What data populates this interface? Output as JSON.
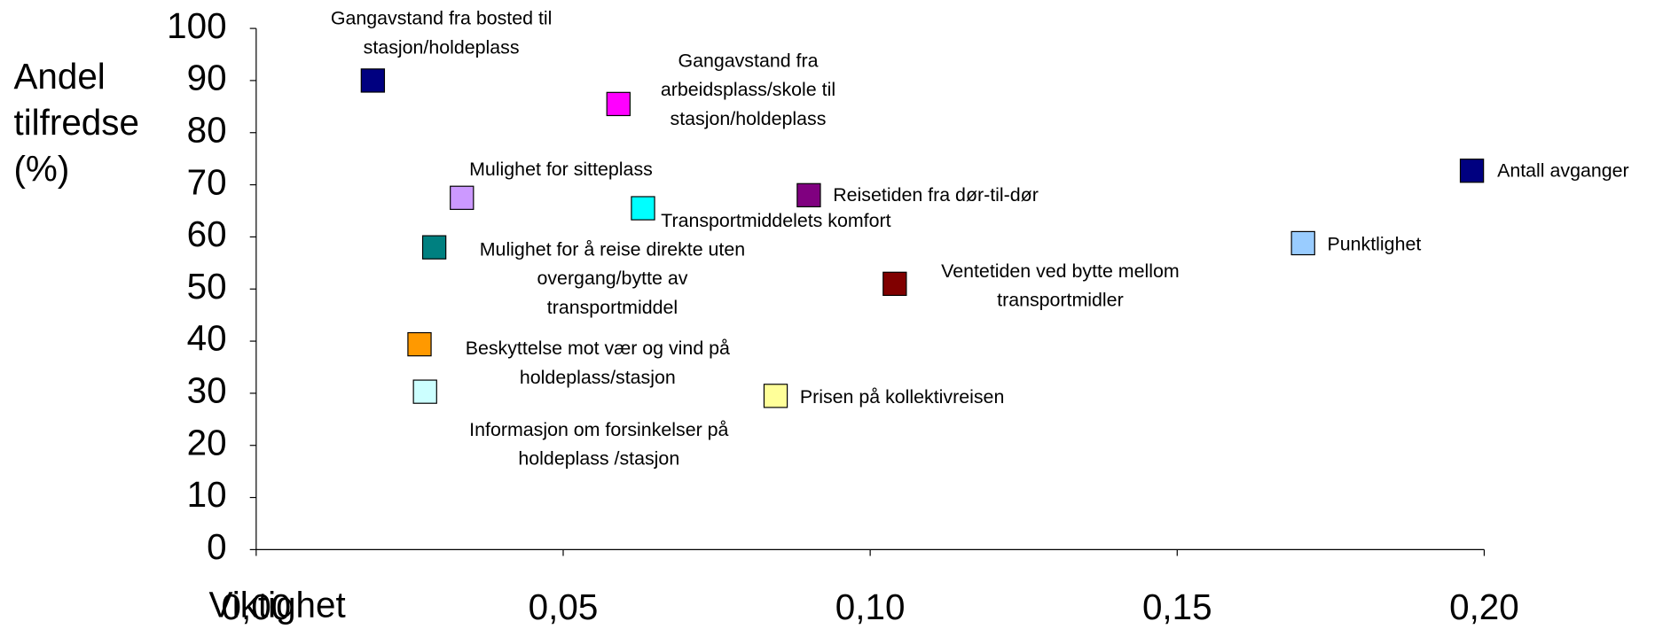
{
  "chart_data": {
    "type": "scatter",
    "ylabel": [
      "Andel",
      "tilfredse",
      "(%)"
    ],
    "xlabel": "Viktighet",
    "xlim": [
      0,
      0.2
    ],
    "ylim": [
      0,
      100
    ],
    "xticks": [
      {
        "value": 0,
        "label": "0,00"
      },
      {
        "value": 0.05,
        "label": "0,05"
      },
      {
        "value": 0.1,
        "label": "0,10"
      },
      {
        "value": 0.15,
        "label": "0,15"
      },
      {
        "value": 0.2,
        "label": "0,20"
      }
    ],
    "yticks": [
      0,
      10,
      20,
      30,
      40,
      50,
      60,
      70,
      80,
      90,
      100
    ],
    "grid": false,
    "points": [
      {
        "label": [
          "Gangavstand fra bosted til",
          "stasjon/holdeplass"
        ],
        "x": 0.019,
        "y": 90,
        "color": "#000080"
      },
      {
        "label": [
          "Gangavstand fra",
          "arbeidsplass/skole til",
          "stasjon/holdeplass"
        ],
        "x": 0.059,
        "y": 85.5,
        "color": "#ff00ff"
      },
      {
        "label": [
          "Mulighet for sitteplass"
        ],
        "x": 0.0335,
        "y": 67.5,
        "color": "#cc99ff"
      },
      {
        "label": [
          "Transportmiddelets komfort"
        ],
        "x": 0.063,
        "y": 65.5,
        "color": "#00ffff"
      },
      {
        "label": [
          "Reisetiden fra dør-til-dør"
        ],
        "x": 0.09,
        "y": 68,
        "color": "#800080"
      },
      {
        "label": [
          "Antall avganger"
        ],
        "x": 0.198,
        "y": 72.7,
        "color": "#000080"
      },
      {
        "label": [
          "Punktlighet"
        ],
        "x": 0.1705,
        "y": 58.8,
        "color": "#99ccff"
      },
      {
        "label": [
          "Mulighet for å reise direkte uten",
          "overgang/bytte av",
          "transportmiddel"
        ],
        "x": 0.029,
        "y": 58,
        "color": "#008080"
      },
      {
        "label": [
          "Ventetiden ved bytte mellom",
          "transportmidler"
        ],
        "x": 0.104,
        "y": 51,
        "color": "#800000"
      },
      {
        "label": [
          "Beskyttelse mot vær og vind på",
          "holdeplass/stasjon"
        ],
        "x": 0.0266,
        "y": 39.4,
        "color": "#ff9900"
      },
      {
        "label": [
          "Informasjon om forsinkelser på",
          "holdeplass /stasjon"
        ],
        "x": 0.0275,
        "y": 30.3,
        "color": "#ccffff"
      },
      {
        "label": [
          "Prisen på kollektivreisen"
        ],
        "x": 0.0846,
        "y": 29.5,
        "color": "#ffff99"
      }
    ]
  }
}
